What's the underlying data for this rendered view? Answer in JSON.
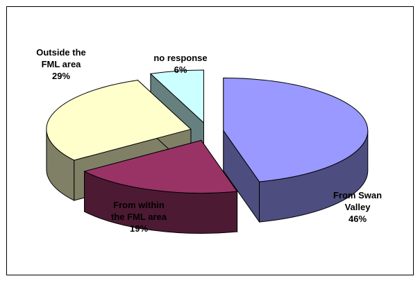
{
  "chart_data": {
    "type": "pie",
    "style": "3d-exploded",
    "title": "",
    "legend": "none",
    "slices": [
      {
        "name": "From Swan Valley",
        "value": 46,
        "label_lines": [
          "From Swan",
          "Valley",
          "46%"
        ],
        "color": "#9999ff",
        "side_color": "#4d4d80"
      },
      {
        "name": "From within the FML area",
        "value": 19,
        "label_lines": [
          "From within",
          "the FML area",
          "19%"
        ],
        "color": "#993366",
        "side_color": "#4d1a33"
      },
      {
        "name": "Outside the FML area",
        "value": 29,
        "label_lines": [
          "Outside the",
          "FML area",
          "29%"
        ],
        "color": "#ffffcc",
        "side_color": "#808066"
      },
      {
        "name": "no response",
        "value": 6,
        "label_lines": [
          "no response",
          "6%"
        ],
        "color": "#ccffff",
        "side_color": "#668080"
      }
    ]
  }
}
